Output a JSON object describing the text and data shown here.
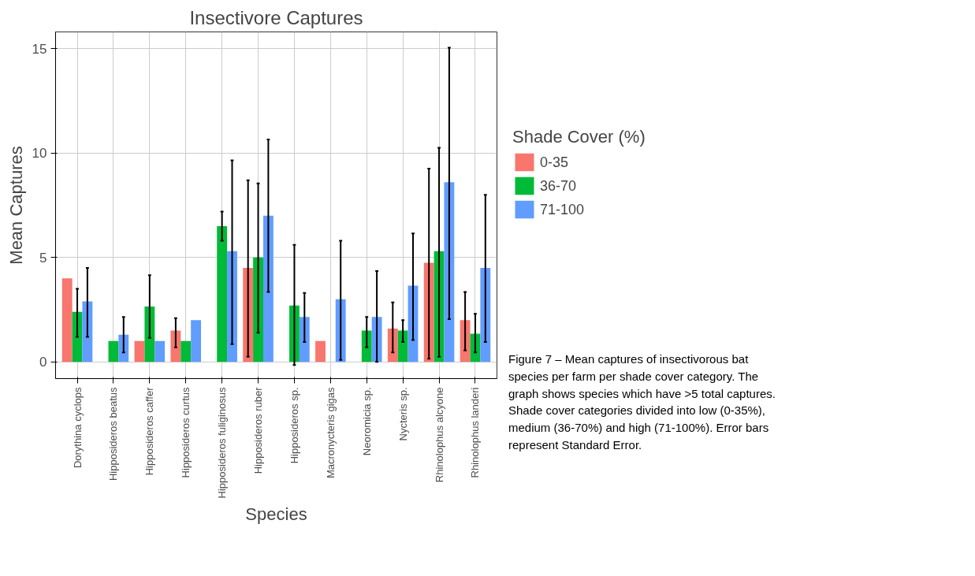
{
  "chart_data": {
    "type": "bar",
    "title": "Insectivore Captures",
    "xlabel": "Species",
    "ylabel": "Mean Captures",
    "legend_title": "Shade Cover (%)",
    "categories": [
      "Dorythina cyclops",
      "Hipposideros beatus",
      "Hipposideros caffer",
      "Hipposideros curtus",
      "Hipposideros fuliginosus",
      "Hipposideros ruber",
      "Hipposideros sp.",
      "Macronycteris gigas",
      "Neoromicia sp.",
      "Nycteris sp.",
      "Rhinolophus alcyone",
      "Rhinolophus landeri"
    ],
    "series": [
      {
        "name": "0-35",
        "color": "#f8766d",
        "values": [
          4.0,
          null,
          1.0,
          1.5,
          null,
          4.5,
          null,
          1.0,
          null,
          1.6,
          4.75,
          2.0
        ],
        "errors": [
          null,
          null,
          null,
          [
            0.7,
            2.1
          ],
          null,
          [
            0.25,
            8.7
          ],
          null,
          null,
          null,
          [
            0.45,
            2.85
          ],
          [
            0.15,
            9.25
          ],
          [
            0.55,
            3.35
          ]
        ]
      },
      {
        "name": "36-70",
        "color": "#00ba38",
        "values": [
          2.4,
          1.0,
          2.65,
          1.0,
          6.5,
          5.0,
          2.7,
          null,
          1.5,
          1.5,
          5.3,
          1.35
        ],
        "errors": [
          [
            1.2,
            3.5
          ],
          null,
          [
            1.15,
            4.15
          ],
          null,
          [
            5.8,
            7.2
          ],
          [
            1.4,
            8.55
          ],
          [
            -0.15,
            5.6
          ],
          null,
          [
            0.7,
            2.15
          ],
          [
            0.95,
            2.0
          ],
          [
            0.25,
            10.25
          ],
          [
            0.45,
            2.3
          ]
        ]
      },
      {
        "name": "71-100",
        "color": "#619cff",
        "values": [
          2.9,
          1.3,
          1.0,
          2.0,
          5.3,
          7.0,
          2.15,
          3.0,
          2.15,
          3.65,
          8.6,
          4.5
        ],
        "errors": [
          [
            1.2,
            4.5
          ],
          [
            0.45,
            2.15
          ],
          null,
          null,
          [
            0.85,
            9.65
          ],
          [
            3.35,
            10.65
          ],
          [
            0.95,
            3.3
          ],
          [
            0.1,
            5.8
          ],
          [
            0.0,
            4.35
          ],
          [
            1.05,
            6.15
          ],
          [
            2.05,
            15.05
          ],
          [
            0.95,
            8.0
          ]
        ]
      }
    ],
    "ylim": [
      -0.8,
      15.8
    ],
    "yticks": [
      0,
      5,
      10,
      15
    ],
    "grid": true,
    "legend": "right",
    "annotations": [
      "Figure 7 – Mean captures of insectivorous bat species per farm per shade cover category. The graph shows species which have >5 total captures. Shade cover categories divided into low (0-35%), medium (36-70%) and high (71-100%). Error bars represent Standard Error."
    ]
  }
}
